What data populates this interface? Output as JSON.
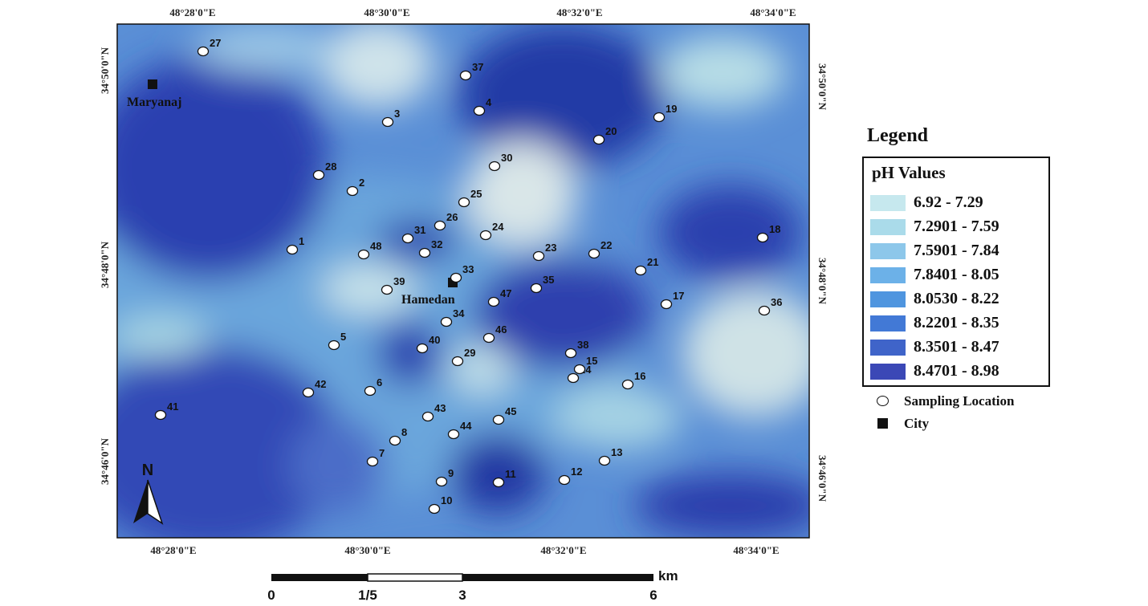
{
  "map": {
    "top_axis_labels": [
      "48°28'0\"E",
      "48°30'0\"E",
      "48°32'0\"E",
      "48°34'0\"E"
    ],
    "bottom_axis_labels": [
      "48°28'0\"E",
      "48°30'0\"E",
      "48°32'0\"E",
      "48°34'0\"E"
    ],
    "left_axis_labels": [
      "34°50'0\"N",
      "34°48'0\"N",
      "34°46'0\"N"
    ],
    "right_axis_labels": [
      "34°50'0\"N",
      "34°48'0\"N",
      "34°46'0\"N"
    ],
    "cities": [
      {
        "name": "Maryanaj"
      },
      {
        "name": "Hamedan"
      }
    ],
    "north_arrow": "N",
    "sampling_points": [
      "1",
      "2",
      "3",
      "4",
      "5",
      "6",
      "7",
      "8",
      "9",
      "10",
      "11",
      "12",
      "13",
      "14",
      "15",
      "16",
      "17",
      "18",
      "19",
      "20",
      "21",
      "22",
      "23",
      "24",
      "25",
      "26",
      "27",
      "28",
      "29",
      "30",
      "31",
      "32",
      "33",
      "34",
      "35",
      "36",
      "37",
      "38",
      "39",
      "40",
      "41",
      "42",
      "43",
      "44",
      "45",
      "46",
      "47",
      "48"
    ]
  },
  "legend": {
    "title": "Legend",
    "subtitle": "pH Values",
    "classes": [
      {
        "label": "6.92 - 7.29",
        "color": "#c6e8ee"
      },
      {
        "label": "7.2901 - 7.59",
        "color": "#aadbea"
      },
      {
        "label": "7.5901 - 7.84",
        "color": "#8dc7ea"
      },
      {
        "label": "7.8401 - 8.05",
        "color": "#6cb1e8"
      },
      {
        "label": "8.0530 - 8.22",
        "color": "#4f95df"
      },
      {
        "label": "8.2201 - 8.35",
        "color": "#4279d6"
      },
      {
        "label": "8.3501 - 8.47",
        "color": "#3f64c9"
      },
      {
        "label": "8.4701 - 8.98",
        "color": "#3b48b6"
      }
    ],
    "sampling_label": "Sampling Location",
    "city_label": "City"
  },
  "scale_bar": {
    "labels": [
      "0",
      "1/5",
      "3",
      "6"
    ],
    "unit": "km"
  }
}
